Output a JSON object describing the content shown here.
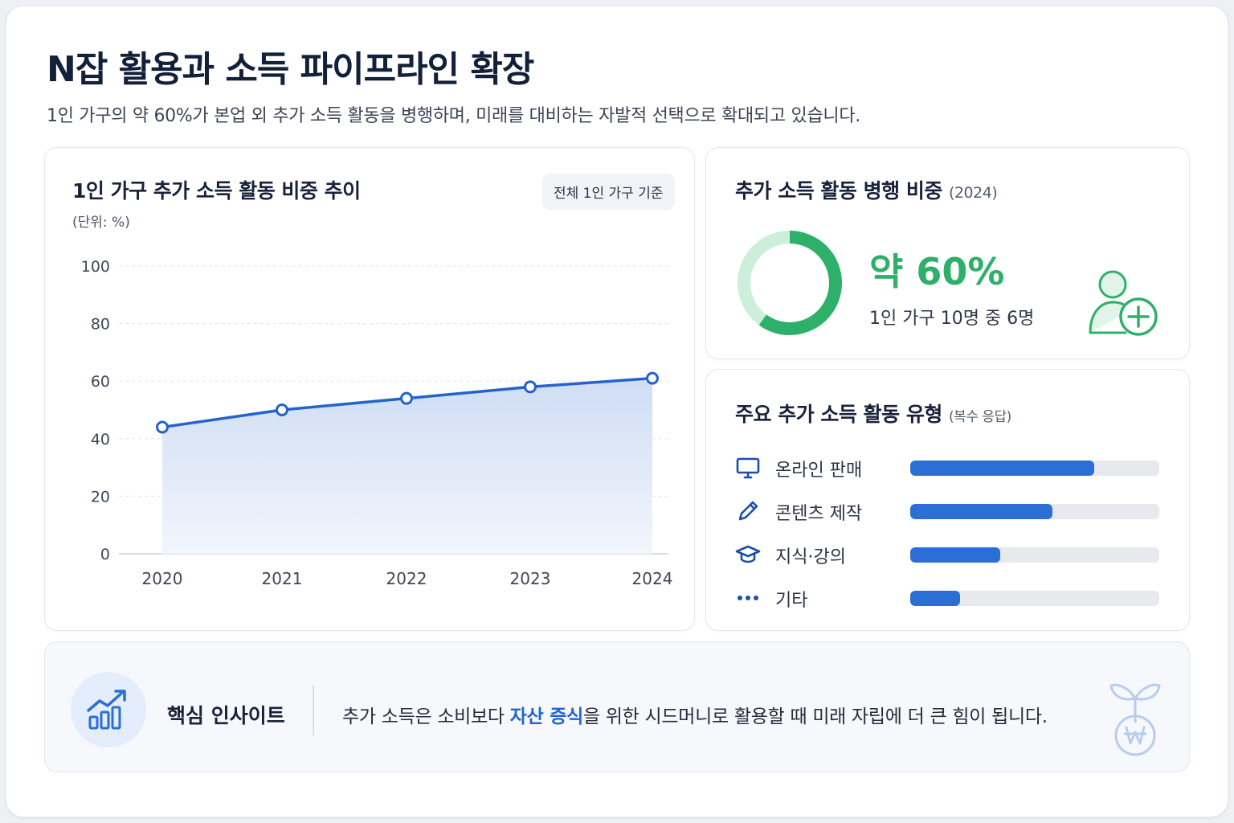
{
  "header": {
    "title": "N잡 활용과 소득 파이프라인 확장",
    "subtitle": "1인 가구의 약 60%가 본업 외 추가 소득 활동을 병행하며, 미래를 대비하는 자발적 선택으로 확대되고 있습니다."
  },
  "trend_card": {
    "title": "1인 가구 추가 소득 활동 비중 추이",
    "badge": "전체 1인 가구 기준",
    "unit": "(단위: %)"
  },
  "ratio_card": {
    "title": "추가 소득 활동 병행 비중",
    "year": "(2024)",
    "percent_text": "약 60%",
    "ratio_text": "1인 가구 10명 중 6명",
    "icon": "user-add-icon",
    "share": 0.6
  },
  "types_card": {
    "title": "주요 추가 소득 활동 유형",
    "note": "(복수 응답)",
    "items": [
      {
        "label": "온라인 판매",
        "icon": "monitor-icon",
        "value": 0.74
      },
      {
        "label": "콘텐츠 제작",
        "icon": "pencil-icon",
        "value": 0.57
      },
      {
        "label": "지식·강의",
        "icon": "graduation-cap-icon",
        "value": 0.36
      },
      {
        "label": "기타",
        "icon": "more-dots-icon",
        "value": 0.2
      }
    ]
  },
  "insight": {
    "label": "핵심 인사이트",
    "text_before": "추가 소득은 소비보다 ",
    "highlight": "자산 증식",
    "text_after": "을 위한 시드머니로 활용할 때 미래 자립에 더 큰 힘이 됩니다.",
    "icon": "growth-chart-icon",
    "deco_icon": "money-sprout-icon"
  },
  "colors": {
    "accent_blue": "#2b6fd6",
    "accent_green": "#2fb06a",
    "highlight_blue": "#1f66d1"
  },
  "chart_data": {
    "type": "area",
    "title": "1인 가구 추가 소득 활동 비중 추이",
    "xlabel": "",
    "ylabel": "(단위: %)",
    "categories": [
      "2020",
      "2021",
      "2022",
      "2023",
      "2024"
    ],
    "values": [
      44,
      50,
      54,
      58,
      61
    ],
    "ylim": [
      0,
      100
    ],
    "yticks": [
      "0",
      "20",
      "40",
      "60",
      "80",
      "100"
    ],
    "grid": true
  }
}
